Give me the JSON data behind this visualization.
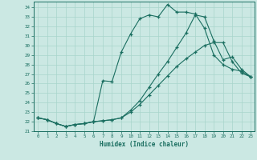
{
  "title": "",
  "xlabel": "Humidex (Indice chaleur)",
  "bg_color": "#cbe8e3",
  "grid_color": "#a8d5cc",
  "line_color": "#1a6e60",
  "xlim": [
    -0.5,
    23.4
  ],
  "ylim": [
    21.0,
    34.6
  ],
  "xticks": [
    0,
    1,
    2,
    3,
    4,
    5,
    6,
    7,
    8,
    9,
    10,
    11,
    12,
    13,
    14,
    15,
    16,
    17,
    18,
    19,
    20,
    21,
    22,
    23
  ],
  "yticks": [
    21,
    22,
    23,
    24,
    25,
    26,
    27,
    28,
    29,
    30,
    31,
    32,
    33,
    34
  ],
  "line1_x": [
    0,
    1,
    2,
    3,
    4,
    5,
    6,
    7,
    8,
    9,
    10,
    11,
    12,
    13,
    14,
    15,
    16,
    17,
    18,
    19,
    20,
    21,
    22,
    23
  ],
  "line1_y": [
    22.4,
    22.2,
    21.8,
    21.5,
    21.7,
    21.8,
    22.0,
    22.1,
    22.2,
    22.4,
    23.0,
    23.8,
    24.8,
    25.8,
    26.8,
    27.8,
    28.6,
    29.3,
    30.0,
    30.3,
    30.3,
    28.3,
    27.1,
    26.7
  ],
  "line2_x": [
    0,
    1,
    2,
    3,
    4,
    5,
    6,
    7,
    8,
    9,
    10,
    11,
    12,
    13,
    14,
    15,
    16,
    17,
    18,
    19,
    20,
    21,
    22,
    23
  ],
  "line2_y": [
    22.4,
    22.2,
    21.8,
    21.5,
    21.7,
    21.8,
    22.0,
    26.3,
    26.2,
    29.3,
    31.2,
    32.8,
    33.2,
    33.0,
    34.3,
    33.5,
    33.5,
    33.3,
    31.8,
    29.0,
    28.0,
    27.5,
    27.3,
    26.7
  ],
  "line3_x": [
    0,
    1,
    2,
    3,
    4,
    5,
    6,
    7,
    8,
    9,
    10,
    11,
    12,
    13,
    14,
    15,
    16,
    17,
    18,
    19,
    20,
    21,
    22,
    23
  ],
  "line3_y": [
    22.4,
    22.2,
    21.8,
    21.5,
    21.7,
    21.8,
    22.0,
    22.1,
    22.2,
    22.4,
    23.2,
    24.2,
    25.6,
    27.0,
    28.3,
    29.8,
    31.3,
    33.2,
    33.0,
    30.5,
    28.5,
    28.8,
    27.5,
    26.7
  ]
}
